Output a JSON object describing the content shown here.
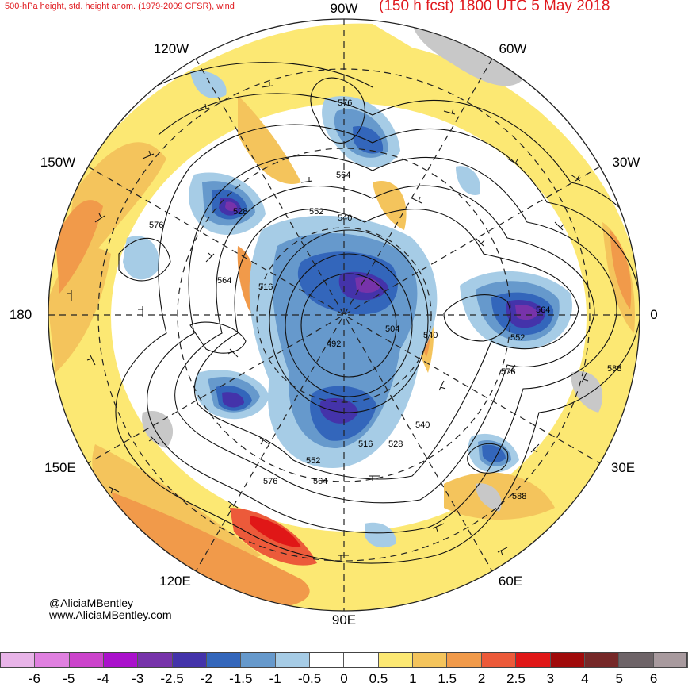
{
  "header": {
    "left_title": "500-hPa height, std. height anom. (1979-2009 CFSR), wind",
    "right_title": "(150 h fcst) 1800 UTC 5 May 2018"
  },
  "longitude_labels": {
    "n": "90W",
    "nne": "60W",
    "ene": "30W",
    "e": "0",
    "ese": "30E",
    "sse": "60E",
    "s": "90E",
    "ssw": "120E",
    "wsw": "150E",
    "w": "180",
    "wnw": "150W",
    "nnw": "120W"
  },
  "credits": {
    "handle": "@AliciaMBentley",
    "website": "www.AliciaMBentley.com"
  },
  "contour_labels": [
    "576",
    "564",
    "552",
    "540",
    "528",
    "576",
    "564",
    "516",
    "504",
    "540",
    "492",
    "564",
    "552",
    "576",
    "588",
    "552",
    "564",
    "576",
    "516",
    "528",
    "540",
    "588"
  ],
  "colorbar": {
    "colors": [
      "#e8b4e8",
      "#e080e0",
      "#cc44cc",
      "#aa11cc",
      "#7733aa",
      "#4433aa",
      "#3366bb",
      "#6699cc",
      "#a6cce6",
      "#ffffff",
      "#ffffff",
      "#fce873",
      "#f4c45c",
      "#f19a4a",
      "#ec5a3a",
      "#e01717",
      "#a00a0a",
      "#762828",
      "#6e6468",
      "#a89a9e"
    ],
    "ticks": [
      "-6",
      "-5",
      "-4",
      "-3",
      "-2.5",
      "-2",
      "-1.5",
      "-1",
      "-0.5",
      "0",
      "0.5",
      "1",
      "1.5",
      "2",
      "2.5",
      "3",
      "4",
      "5",
      "6"
    ]
  }
}
